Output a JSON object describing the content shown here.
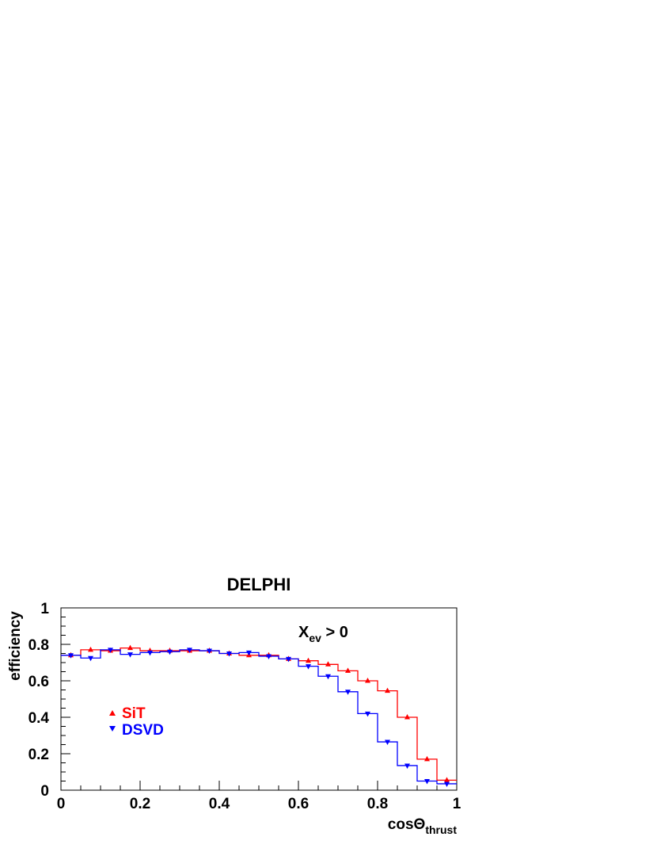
{
  "chart_data": {
    "type": "line",
    "title": "DELPHI",
    "xlabel": "cosΘ",
    "xlabel_sub": "thrust",
    "ylabel": "efficiency",
    "xlim": [
      0,
      1
    ],
    "ylim": [
      0,
      1
    ],
    "x_ticks": [
      {
        "value": 0,
        "label": "0"
      },
      {
        "value": 0.2,
        "label": "0.2"
      },
      {
        "value": 0.4,
        "label": "0.4"
      },
      {
        "value": 0.6,
        "label": "0.6"
      },
      {
        "value": 0.8,
        "label": "0.8"
      },
      {
        "value": 1,
        "label": "1"
      }
    ],
    "y_ticks": [
      {
        "value": 0,
        "label": "0"
      },
      {
        "value": 0.2,
        "label": "0.2"
      },
      {
        "value": 0.4,
        "label": "0.4"
      },
      {
        "value": 0.6,
        "label": "0.6"
      },
      {
        "value": 0.8,
        "label": "0.8"
      },
      {
        "value": 1,
        "label": "1"
      }
    ],
    "annotation": {
      "main": "X",
      "sub": "ev",
      "rest": " > 0"
    },
    "legend_position": "left",
    "bin_edges": [
      0,
      0.05,
      0.1,
      0.15,
      0.2,
      0.25,
      0.3,
      0.35,
      0.4,
      0.45,
      0.5,
      0.55,
      0.6,
      0.65,
      0.7,
      0.75,
      0.8,
      0.85,
      0.9,
      0.95,
      1.0
    ],
    "x": [
      0.025,
      0.075,
      0.125,
      0.175,
      0.225,
      0.275,
      0.325,
      0.375,
      0.425,
      0.475,
      0.525,
      0.575,
      0.625,
      0.675,
      0.725,
      0.775,
      0.825,
      0.875,
      0.925,
      0.975
    ],
    "series": [
      {
        "name": "SiT",
        "color": "#ff0000",
        "marker": "triangle-up",
        "values": [
          0.74,
          0.77,
          0.765,
          0.78,
          0.765,
          0.765,
          0.765,
          0.765,
          0.75,
          0.74,
          0.74,
          0.72,
          0.71,
          0.69,
          0.655,
          0.6,
          0.545,
          0.4,
          0.17,
          0.055
        ]
      },
      {
        "name": "DSVD",
        "color": "#0000ff",
        "marker": "triangle-down",
        "values": [
          0.74,
          0.725,
          0.77,
          0.745,
          0.755,
          0.76,
          0.77,
          0.765,
          0.75,
          0.755,
          0.735,
          0.72,
          0.68,
          0.625,
          0.54,
          0.42,
          0.265,
          0.135,
          0.05,
          0.035
        ]
      }
    ]
  }
}
